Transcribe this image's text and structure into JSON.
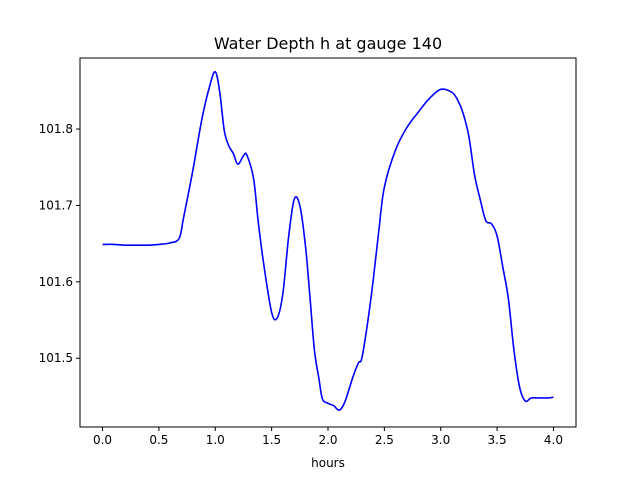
{
  "chart_data": {
    "type": "line",
    "title": "Water Depth h at gauge 140",
    "xlabel": "hours",
    "ylabel": "",
    "xlim": [
      -0.2,
      4.2
    ],
    "ylim": [
      101.41,
      101.893
    ],
    "xticks": [
      0.0,
      0.5,
      1.0,
      1.5,
      2.0,
      2.5,
      3.0,
      3.5,
      4.0
    ],
    "xtick_labels": [
      "0.0",
      "0.5",
      "1.0",
      "1.5",
      "2.0",
      "2.5",
      "3.0",
      "3.5",
      "4.0"
    ],
    "yticks": [
      101.5,
      101.6,
      101.7,
      101.8
    ],
    "ytick_labels": [
      "101.5",
      "101.6",
      "101.7",
      "101.8"
    ],
    "grid": false,
    "series": [
      {
        "color": "#0000ff",
        "x": [
          0.0,
          0.1,
          0.2,
          0.3,
          0.4,
          0.5,
          0.6,
          0.68,
          0.72,
          0.8,
          0.88,
          0.95,
          1.0,
          1.04,
          1.08,
          1.12,
          1.16,
          1.2,
          1.25,
          1.28,
          1.34,
          1.38,
          1.43,
          1.5,
          1.55,
          1.6,
          1.65,
          1.7,
          1.75,
          1.8,
          1.84,
          1.88,
          1.92,
          1.95,
          2.0,
          2.05,
          2.1,
          2.15,
          2.22,
          2.27,
          2.3,
          2.35,
          2.4,
          2.45,
          2.5,
          2.6,
          2.7,
          2.8,
          2.9,
          3.0,
          3.1,
          3.15,
          3.2,
          3.25,
          3.3,
          3.35,
          3.4,
          3.45,
          3.5,
          3.55,
          3.6,
          3.65,
          3.7,
          3.75,
          3.8,
          3.85,
          3.9,
          3.95,
          4.0
        ],
        "y": [
          101.649,
          101.649,
          101.648,
          101.648,
          101.648,
          101.649,
          101.651,
          101.657,
          101.685,
          101.745,
          101.812,
          101.856,
          101.875,
          101.848,
          101.798,
          101.778,
          101.768,
          101.754,
          101.765,
          101.766,
          101.735,
          101.68,
          101.623,
          101.56,
          101.553,
          101.585,
          101.658,
          101.708,
          101.7,
          101.647,
          101.58,
          101.51,
          101.473,
          101.447,
          101.441,
          101.438,
          101.432,
          101.443,
          101.475,
          101.494,
          101.5,
          101.545,
          101.601,
          101.666,
          101.724,
          101.773,
          101.802,
          101.822,
          101.84,
          101.852,
          101.848,
          101.838,
          101.82,
          101.79,
          101.74,
          101.708,
          101.68,
          101.676,
          101.66,
          101.62,
          101.578,
          101.51,
          101.462,
          101.444,
          101.448,
          101.448,
          101.448,
          101.448,
          101.449
        ]
      }
    ]
  }
}
